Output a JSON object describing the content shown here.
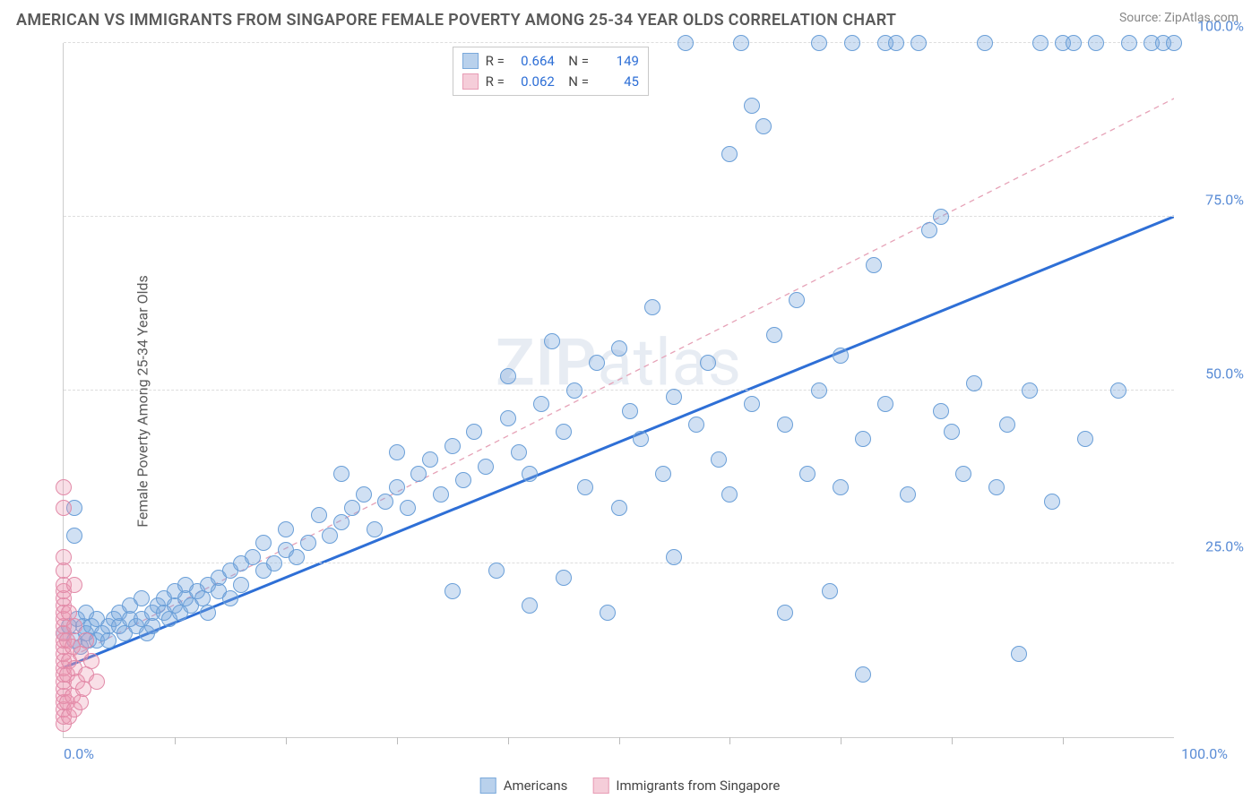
{
  "header": {
    "title": "AMERICAN VS IMMIGRANTS FROM SINGAPORE FEMALE POVERTY AMONG 25-34 YEAR OLDS CORRELATION CHART",
    "source": "Source: ZipAtlas.com"
  },
  "chart": {
    "type": "scatter",
    "ylabel": "Female Poverty Among 25-34 Year Olds",
    "watermark_bold": "ZIP",
    "watermark_light": "atlas",
    "xlim": [
      0,
      100
    ],
    "ylim": [
      0,
      100
    ],
    "background_color": "#ffffff",
    "grid_color": "#dddddd",
    "axis_color": "#cccccc",
    "tick_label_color": "#5b8dd6",
    "label_color": "#5a5a5a",
    "label_fontsize": 16,
    "yticks": [
      {
        "v": 25,
        "label": "25.0%"
      },
      {
        "v": 50,
        "label": "50.0%"
      },
      {
        "v": 75,
        "label": "75.0%"
      },
      {
        "v": 100,
        "label": "100.0%"
      }
    ],
    "xticks_major": [
      {
        "v": 0,
        "label": "0.0%"
      },
      {
        "v": 100,
        "label": "100.0%"
      }
    ],
    "xticks_minor": [
      10,
      20,
      30,
      40,
      50,
      60,
      70,
      80,
      90
    ],
    "point_radius": 9,
    "point_stroke_width": 1.2,
    "series": [
      {
        "name": "Americans",
        "fill": "rgba(120,165,220,0.35)",
        "stroke": "#6a9fd8",
        "swatch_fill": "#b9d1ec",
        "swatch_stroke": "#7aa9db",
        "R": "0.664",
        "N": "149",
        "trend": {
          "x1": 0,
          "y1": 10,
          "x2": 100,
          "y2": 75,
          "stroke": "#2e6fd6",
          "width": 3,
          "dash": "0"
        },
        "points": [
          [
            0,
            15
          ],
          [
            0.5,
            16
          ],
          [
            1,
            14
          ],
          [
            1,
            29
          ],
          [
            1,
            33
          ],
          [
            1.2,
            17
          ],
          [
            1.5,
            13
          ],
          [
            1.8,
            16
          ],
          [
            2,
            15
          ],
          [
            2,
            18
          ],
          [
            2.3,
            14
          ],
          [
            2.5,
            16
          ],
          [
            3,
            14
          ],
          [
            3,
            17
          ],
          [
            3.5,
            15
          ],
          [
            4,
            16
          ],
          [
            4,
            14
          ],
          [
            4.5,
            17
          ],
          [
            5,
            16
          ],
          [
            5,
            18
          ],
          [
            5.5,
            15
          ],
          [
            6,
            17
          ],
          [
            6,
            19
          ],
          [
            6.5,
            16
          ],
          [
            7,
            17
          ],
          [
            7,
            20
          ],
          [
            7.5,
            15
          ],
          [
            8,
            18
          ],
          [
            8,
            16
          ],
          [
            8.5,
            19
          ],
          [
            9,
            18
          ],
          [
            9,
            20
          ],
          [
            9.5,
            17
          ],
          [
            10,
            19
          ],
          [
            10,
            21
          ],
          [
            10.5,
            18
          ],
          [
            11,
            20
          ],
          [
            11,
            22
          ],
          [
            11.5,
            19
          ],
          [
            12,
            21
          ],
          [
            12.5,
            20
          ],
          [
            13,
            22
          ],
          [
            13,
            18
          ],
          [
            14,
            23
          ],
          [
            14,
            21
          ],
          [
            15,
            24
          ],
          [
            15,
            20
          ],
          [
            16,
            25
          ],
          [
            16,
            22
          ],
          [
            17,
            26
          ],
          [
            18,
            24
          ],
          [
            18,
            28
          ],
          [
            19,
            25
          ],
          [
            20,
            27
          ],
          [
            20,
            30
          ],
          [
            21,
            26
          ],
          [
            22,
            28
          ],
          [
            23,
            32
          ],
          [
            24,
            29
          ],
          [
            25,
            31
          ],
          [
            25,
            38
          ],
          [
            26,
            33
          ],
          [
            27,
            35
          ],
          [
            28,
            30
          ],
          [
            29,
            34
          ],
          [
            30,
            36
          ],
          [
            30,
            41
          ],
          [
            31,
            33
          ],
          [
            32,
            38
          ],
          [
            33,
            40
          ],
          [
            34,
            35
          ],
          [
            35,
            42
          ],
          [
            35,
            21
          ],
          [
            36,
            37
          ],
          [
            37,
            44
          ],
          [
            38,
            39
          ],
          [
            39,
            24
          ],
          [
            40,
            46
          ],
          [
            40,
            52
          ],
          [
            41,
            41
          ],
          [
            42,
            38
          ],
          [
            42,
            19
          ],
          [
            43,
            48
          ],
          [
            44,
            57
          ],
          [
            45,
            44
          ],
          [
            45,
            23
          ],
          [
            46,
            50
          ],
          [
            47,
            36
          ],
          [
            48,
            54
          ],
          [
            49,
            18
          ],
          [
            50,
            56
          ],
          [
            50,
            33
          ],
          [
            51,
            47
          ],
          [
            52,
            43
          ],
          [
            53,
            62
          ],
          [
            54,
            38
          ],
          [
            55,
            49
          ],
          [
            55,
            26
          ],
          [
            56,
            100
          ],
          [
            57,
            45
          ],
          [
            58,
            54
          ],
          [
            59,
            40
          ],
          [
            60,
            84
          ],
          [
            60,
            35
          ],
          [
            61,
            100
          ],
          [
            62,
            91
          ],
          [
            62,
            48
          ],
          [
            63,
            88
          ],
          [
            64,
            58
          ],
          [
            65,
            45
          ],
          [
            65,
            18
          ],
          [
            66,
            63
          ],
          [
            67,
            38
          ],
          [
            68,
            50
          ],
          [
            68,
            100
          ],
          [
            69,
            21
          ],
          [
            70,
            55
          ],
          [
            70,
            36
          ],
          [
            71,
            100
          ],
          [
            72,
            43
          ],
          [
            72,
            9
          ],
          [
            73,
            68
          ],
          [
            74,
            48
          ],
          [
            74,
            100
          ],
          [
            75,
            100
          ],
          [
            76,
            35
          ],
          [
            77,
            100
          ],
          [
            78,
            73
          ],
          [
            79,
            75
          ],
          [
            79,
            47
          ],
          [
            80,
            44
          ],
          [
            81,
            38
          ],
          [
            82,
            51
          ],
          [
            83,
            100
          ],
          [
            84,
            36
          ],
          [
            85,
            45
          ],
          [
            86,
            12
          ],
          [
            87,
            50
          ],
          [
            88,
            100
          ],
          [
            89,
            34
          ],
          [
            90,
            100
          ],
          [
            91,
            100
          ],
          [
            92,
            43
          ],
          [
            93,
            100
          ],
          [
            95,
            50
          ],
          [
            96,
            100
          ],
          [
            98,
            100
          ],
          [
            99,
            100
          ],
          [
            100,
            100
          ]
        ]
      },
      {
        "name": "Immigrants from Singapore",
        "fill": "rgba(235,150,175,0.30)",
        "stroke": "#e28aa8",
        "swatch_fill": "#f5cdd9",
        "swatch_stroke": "#e79cb5",
        "R": "0.062",
        "N": "45",
        "trend": {
          "x1": 0,
          "y1": 11,
          "x2": 100,
          "y2": 92,
          "stroke": "#e6a2b7",
          "width": 1.3,
          "dash": "6 5"
        },
        "points": [
          [
            0,
            2
          ],
          [
            0,
            3
          ],
          [
            0,
            4
          ],
          [
            0,
            5
          ],
          [
            0,
            6
          ],
          [
            0,
            7
          ],
          [
            0,
            8
          ],
          [
            0,
            9
          ],
          [
            0,
            10
          ],
          [
            0,
            11
          ],
          [
            0,
            12
          ],
          [
            0,
            13
          ],
          [
            0,
            14
          ],
          [
            0,
            15
          ],
          [
            0,
            16
          ],
          [
            0,
            17
          ],
          [
            0,
            18
          ],
          [
            0,
            19
          ],
          [
            0,
            20
          ],
          [
            0,
            21
          ],
          [
            0,
            22
          ],
          [
            0,
            24
          ],
          [
            0,
            26
          ],
          [
            0,
            33
          ],
          [
            0,
            36
          ],
          [
            0.3,
            5
          ],
          [
            0.3,
            9
          ],
          [
            0.3,
            14
          ],
          [
            0.5,
            3
          ],
          [
            0.5,
            11
          ],
          [
            0.5,
            18
          ],
          [
            0.8,
            6
          ],
          [
            0.8,
            13
          ],
          [
            1,
            4
          ],
          [
            1,
            10
          ],
          [
            1,
            16
          ],
          [
            1,
            22
          ],
          [
            1.2,
            8
          ],
          [
            1.5,
            5
          ],
          [
            1.5,
            12
          ],
          [
            1.8,
            7
          ],
          [
            2,
            9
          ],
          [
            2,
            14
          ],
          [
            2.5,
            11
          ],
          [
            3,
            8
          ]
        ]
      }
    ],
    "legend_bottom": [
      {
        "label": "Americans",
        "swatch_fill": "#b9d1ec",
        "swatch_stroke": "#7aa9db"
      },
      {
        "label": "Immigrants from Singapore",
        "swatch_fill": "#f5cdd9",
        "swatch_stroke": "#e79cb5"
      }
    ]
  }
}
